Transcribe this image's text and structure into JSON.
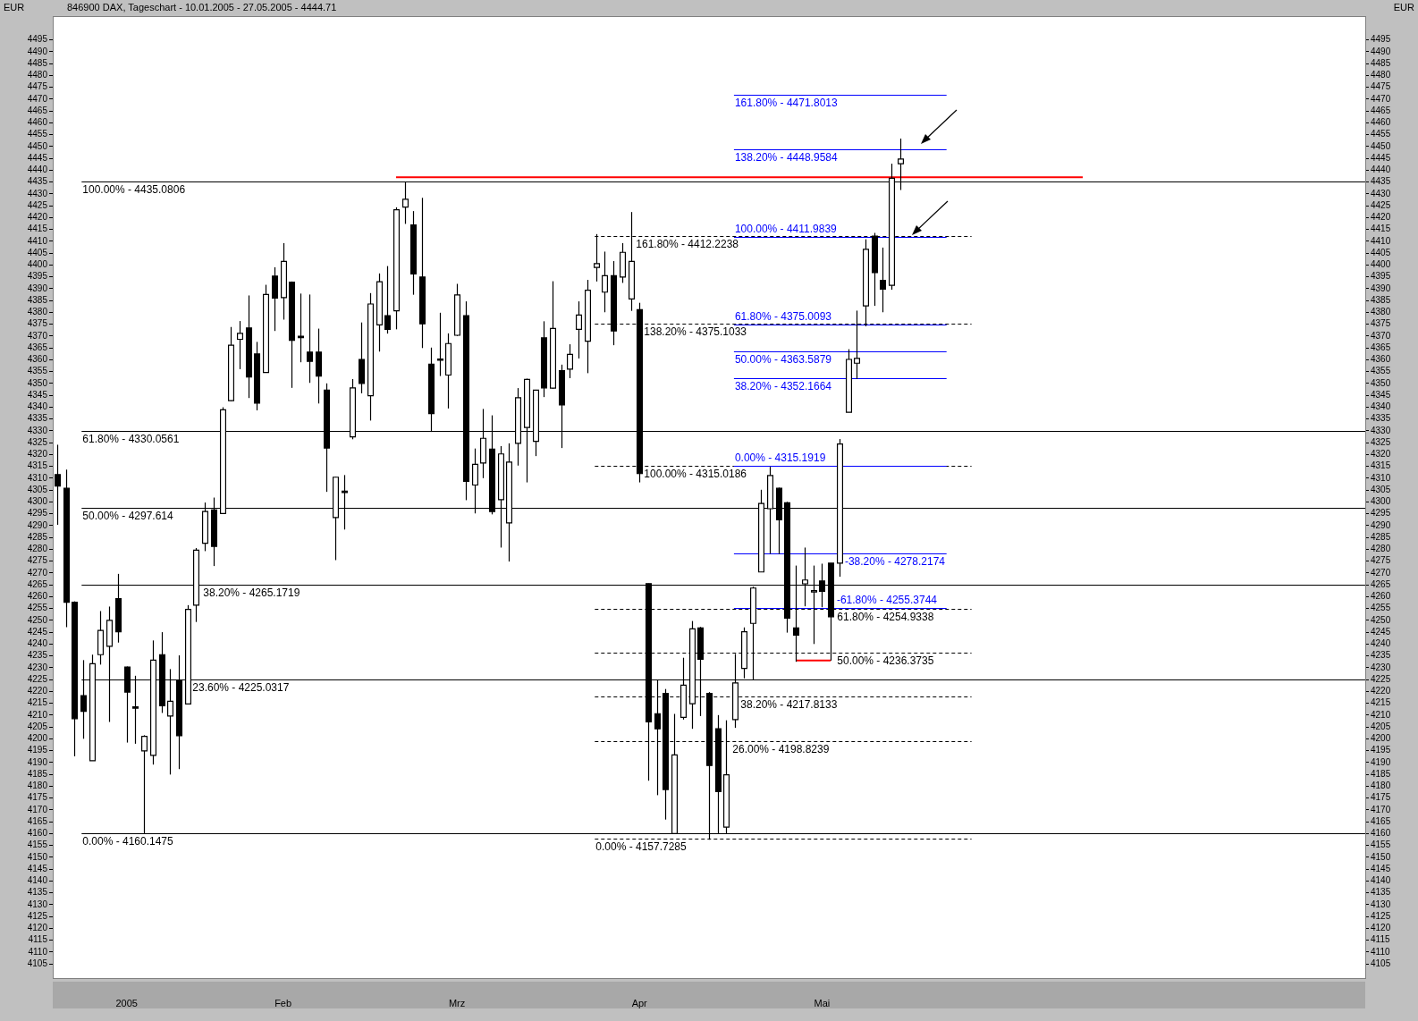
{
  "chart_data": {
    "type": "candlestick",
    "title": "846900 DAX, Tageschart - 10.01.2005 - 27.05.2005 - 4444.71",
    "ylabel": "EUR",
    "y2label": "EUR",
    "categories": [
      null,
      null,
      null,
      null,
      null,
      null,
      null,
      null,
      "2005",
      null,
      null,
      null,
      null,
      null,
      null,
      null,
      null,
      null,
      null,
      null,
      null,
      null,
      null,
      null,
      null,
      null,
      "Feb",
      null,
      null,
      null,
      null,
      null,
      null,
      null,
      null,
      null,
      null,
      null,
      null,
      null,
      null,
      null,
      null,
      null,
      null,
      null,
      "Mrz",
      null,
      null,
      null,
      null,
      null,
      null,
      null,
      null,
      null,
      null,
      null,
      null,
      null,
      null,
      null,
      null,
      null,
      null,
      null,
      null,
      "Apr",
      null,
      null,
      null,
      null,
      null,
      null,
      null,
      null,
      null,
      null,
      null,
      null,
      null,
      null,
      null,
      null,
      null,
      null,
      null,
      null,
      "Mai",
      null,
      null,
      null,
      null,
      null,
      null,
      null,
      null,
      null,
      null,
      null,
      null,
      null,
      null,
      null,
      null,
      null,
      null,
      null,
      null,
      null,
      null,
      null,
      null,
      null,
      null,
      null,
      null,
      null,
      null,
      null,
      null,
      null,
      null,
      null,
      null,
      null,
      null,
      null,
      null,
      null,
      null,
      null,
      null,
      null,
      null,
      null,
      null,
      null,
      null,
      null,
      null,
      null,
      null,
      null,
      null,
      null,
      null,
      null,
      null,
      null,
      null
    ],
    "ohlc": [
      [
        4311.5,
        4324.1,
        4290.3,
        4306.7
      ],
      [
        4305.7,
        4313.6,
        4247.1,
        4257.6
      ],
      [
        4257.6,
        4258,
        4192.6,
        4208.5
      ],
      [
        4218.2,
        4233.2,
        4200,
        4211.6
      ],
      [
        4190.7,
        4235.5,
        4190.7,
        4231.7
      ],
      [
        4235.5,
        4253.9,
        4231.3,
        4245.7
      ],
      [
        4239,
        4255.8,
        4207.1,
        4250
      ],
      [
        4259.1,
        4269.6,
        4240.6,
        4245.2
      ],
      [
        4230.3,
        4230.5,
        4198.4,
        4219.7
      ],
      [
        4213.5,
        4226.6,
        4197.9,
        4213
      ],
      [
        4194.9,
        4201.5,
        4160,
        4201
      ],
      [
        4193,
        4241.5,
        4189.1,
        4233.2
      ],
      [
        4235.5,
        4245,
        4210.9,
        4213.9
      ],
      [
        4209.6,
        4229.4,
        4184.9,
        4215.8
      ],
      [
        4224.5,
        4235.2,
        4187.2,
        4201.3
      ],
      [
        4214.7,
        4256.4,
        4214.5,
        4254.6
      ],
      [
        4256.4,
        4280.5,
        4249.3,
        4279.6
      ],
      [
        4282.5,
        4299.7,
        4279.2,
        4295.9
      ],
      [
        4296.6,
        4301.8,
        4272.9,
        4281.2
      ],
      [
        4295.1,
        4339.9,
        4295,
        4338.8
      ],
      [
        4342.7,
        4373.8,
        4342.5,
        4366.1
      ],
      [
        4368.6,
        4376.3,
        4356,
        4371.1
      ],
      [
        4373.4,
        4387.1,
        4343.8,
        4352.7
      ],
      [
        4362.4,
        4367.5,
        4338.6,
        4341.7
      ],
      [
        4354.6,
        4391.6,
        4354.5,
        4387.5
      ],
      [
        4395.3,
        4399,
        4372.1,
        4386
      ],
      [
        4386.2,
        4409.2,
        4376.9,
        4401.5
      ],
      [
        4392.7,
        4393,
        4348.1,
        4368.2
      ],
      [
        4369.9,
        4387.9,
        4358.9,
        4369.5
      ],
      [
        4363.2,
        4387.5,
        4350.2,
        4359.3
      ],
      [
        4363.2,
        4373.1,
        4341.5,
        4353.1
      ],
      [
        4347.1,
        4350,
        4304.2,
        4322.7
      ],
      [
        4293.4,
        4310.5,
        4275.4,
        4310.4
      ],
      [
        4304.5,
        4311.3,
        4288.3,
        4304
      ],
      [
        4327.4,
        4351.8,
        4326.4,
        4348.1
      ],
      [
        4360.1,
        4375.7,
        4345.8,
        4350
      ],
      [
        4344.8,
        4388.1,
        4334.3,
        4383.5
      ],
      [
        4374.7,
        4396.4,
        4363.4,
        4392.9
      ],
      [
        4378.6,
        4399.5,
        4371,
        4372.8
      ],
      [
        4380.6,
        4424.3,
        4372.8,
        4423.3
      ],
      [
        4424.4,
        4435.1,
        4417.3,
        4427.7
      ],
      [
        4416.9,
        4422.7,
        4387.4,
        4396.2
      ],
      [
        4394.9,
        4428.3,
        4364.9,
        4375.1
      ],
      [
        4358.1,
        4365.1,
        4329.5,
        4337.2
      ],
      [
        4360.3,
        4379.8,
        4353.1,
        4360
      ],
      [
        4353.5,
        4371.1,
        4339.4,
        4366.8
      ],
      [
        4370.3,
        4392,
        4370,
        4387.3
      ],
      [
        4378.6,
        4384.6,
        4300.7,
        4308.6
      ],
      [
        4307.1,
        4322.5,
        4295.1,
        4315.8
      ],
      [
        4316.4,
        4339.2,
        4310,
        4326.8
      ],
      [
        4322.2,
        4336.5,
        4294.7,
        4295.9
      ],
      [
        4300.9,
        4323.5,
        4280.7,
        4320.2
      ],
      [
        4291.1,
        4324.7,
        4274.8,
        4316.8
      ],
      [
        4324.7,
        4348,
        4315.3,
        4343.9
      ],
      [
        4331.4,
        4352,
        4308.2,
        4351.7
      ],
      [
        4325.5,
        4347.3,
        4319.3,
        4347.1
      ],
      [
        4369.2,
        4376.2,
        4344.2,
        4348.1
      ],
      [
        4348,
        4393.1,
        4347.7,
        4373.2
      ],
      [
        4355.4,
        4357.9,
        4322.7,
        4340.9
      ],
      [
        4356,
        4366.5,
        4352.2,
        4362.2
      ],
      [
        4372.8,
        4384.6,
        4360.5,
        4378.8
      ],
      [
        4367.8,
        4393.7,
        4354.3,
        4389.3
      ],
      [
        4398.9,
        4413,
        4393,
        4400.5
      ],
      [
        4388.5,
        4405.6,
        4380,
        4395.4
      ],
      [
        4395.4,
        4401.6,
        4366.1,
        4372.1
      ],
      [
        4394.9,
        4409.2,
        4392.4,
        4405.3
      ],
      [
        4385.6,
        4422.3,
        4380.6,
        4401.5
      ],
      [
        4381.1,
        4384,
        4308.2,
        4311.9
      ],
      [
        4265.5,
        4265.5,
        4182.3,
        4207.1
      ],
      [
        4210.6,
        4224.9,
        4176.2,
        4204.2
      ],
      [
        4219.1,
        4221,
        4165.9,
        4178.6
      ],
      [
        4160,
        4210.5,
        4160,
        4193.2
      ],
      [
        4209,
        4234.2,
        4208.1,
        4222.6
      ],
      [
        4214.8,
        4249.7,
        4204.2,
        4246.4
      ],
      [
        4246.8,
        4247.2,
        4209.6,
        4233.6
      ],
      [
        4219.1,
        4219.7,
        4157.4,
        4188.7
      ],
      [
        4204.2,
        4210,
        4160,
        4177.7
      ],
      [
        4162.7,
        4207.8,
        4160,
        4184.8
      ],
      [
        4208.1,
        4235.8,
        4204.6,
        4223.6
      ],
      [
        4229.7,
        4247,
        4225.5,
        4245.2
      ],
      [
        4248.7,
        4264.2,
        4225,
        4263.6
      ],
      [
        4270.4,
        4305.1,
        4270.4,
        4299.3
      ],
      [
        4297.1,
        4314.8,
        4278.1,
        4311.1
      ],
      [
        4305.7,
        4306,
        4278,
        4292.4
      ],
      [
        4299.6,
        4300,
        4244.8,
        4250.9
      ],
      [
        4246.8,
        4273.1,
        4232.5,
        4243.7
      ],
      [
        4265.4,
        4280.7,
        4255.9,
        4267
      ],
      [
        4262,
        4273.1,
        4240,
        4262.5
      ],
      [
        4266.6,
        4273.9,
        4255.5,
        4262.2
      ],
      [
        4274.1,
        4274.1,
        4233,
        4251.5
      ],
      [
        4274.1,
        4326.5,
        4268.4,
        4324.4
      ],
      [
        4337.8,
        4364.4,
        4337.8,
        4360.1
      ],
      [
        4358.5,
        4380.7,
        4351.8,
        4360.5
      ],
      [
        4382.7,
        4410.8,
        4374.1,
        4406.6
      ],
      [
        4412.1,
        4413.5,
        4382.7,
        4396.7
      ],
      [
        4393.5,
        4407.3,
        4380,
        4389.8
      ],
      [
        4391.4,
        4442.7,
        4389.5,
        4436.6
      ],
      [
        4442.7,
        4453.3,
        4431.6,
        4444.71
      ],
      null,
      null,
      null,
      null,
      null,
      null,
      null,
      null,
      null,
      null,
      null,
      null,
      null,
      null,
      null,
      null,
      null,
      null,
      null,
      null,
      null,
      null,
      null,
      null,
      null,
      null,
      null,
      null,
      null,
      null,
      null,
      null,
      null,
      null,
      null,
      null,
      null,
      null,
      null,
      null,
      null,
      null,
      null,
      null,
      null,
      null,
      null,
      null,
      null,
      null,
      null,
      null,
      null
    ],
    "series": [
      {
        "type": "line",
        "color": "#ff0000",
        "values": [
          null,
          null,
          null,
          null,
          null,
          null,
          null,
          null,
          null,
          null,
          null,
          null,
          null,
          null,
          null,
          null,
          null,
          null,
          null,
          null,
          null,
          null,
          null,
          null,
          null,
          null,
          null,
          null,
          null,
          null,
          null,
          null,
          null,
          null,
          null,
          null,
          null,
          null,
          null,
          4437,
          4437,
          4437,
          4437,
          4437,
          4437,
          4437,
          4437,
          4437,
          4437,
          4437,
          4437,
          4437,
          4437,
          4437,
          4437,
          4437,
          4437,
          4437,
          4437,
          4437,
          4437,
          4437,
          4437,
          4437,
          4437,
          4437,
          4437,
          4437,
          4437,
          4437,
          4437,
          4437,
          4437,
          4437,
          4437,
          4437,
          4437,
          4437,
          4437,
          4437,
          4437,
          4437,
          4437,
          4437,
          4437,
          4437,
          4437,
          4437,
          4437,
          4437,
          4437,
          4437,
          4437,
          4437,
          4437,
          4437,
          4437,
          4437,
          4437,
          4437,
          4437,
          4437,
          4437,
          4437,
          4437,
          4437,
          4437,
          4437,
          4437,
          4437,
          4437,
          4437,
          4437,
          4437,
          4437,
          4437,
          4437,
          4437,
          4437,
          null,
          null,
          null,
          null,
          null,
          null,
          null,
          null,
          null,
          null,
          null,
          null,
          null,
          null,
          null,
          null,
          null,
          null,
          null,
          null,
          null,
          null,
          null,
          null,
          null,
          null,
          null,
          null,
          null,
          null,
          null,
          null
        ]
      },
      {
        "type": "line",
        "color": "#ff0000",
        "values": [
          null,
          null,
          null,
          null,
          null,
          null,
          null,
          null,
          null,
          null,
          null,
          null,
          null,
          null,
          null,
          null,
          null,
          null,
          null,
          null,
          null,
          null,
          null,
          null,
          null,
          null,
          null,
          null,
          null,
          null,
          null,
          null,
          null,
          null,
          null,
          null,
          null,
          null,
          null,
          null,
          null,
          null,
          null,
          null,
          null,
          null,
          null,
          null,
          null,
          null,
          null,
          null,
          null,
          null,
          null,
          null,
          null,
          null,
          null,
          null,
          null,
          null,
          null,
          null,
          null,
          null,
          null,
          null,
          null,
          null,
          null,
          null,
          null,
          null,
          null,
          null,
          null,
          null,
          null,
          null,
          null,
          null,
          null,
          null,
          null,
          4233,
          4233,
          4233,
          4233,
          4233,
          null,
          null,
          null,
          null,
          null,
          null,
          null,
          null,
          null,
          null,
          null,
          null,
          null,
          null,
          null,
          null,
          null,
          null,
          null,
          null,
          null,
          null,
          null,
          null,
          null,
          null,
          null,
          null,
          null,
          null,
          null,
          null,
          null,
          null,
          null,
          null,
          null,
          null,
          null,
          null,
          null,
          null,
          null,
          null,
          null,
          null,
          null,
          null,
          null,
          null,
          null,
          null,
          null,
          null,
          null,
          null,
          null,
          null,
          null,
          null,
          null
        ]
      }
    ],
    "ref_lines": [
      {
        "axis": "y",
        "value": 4435.0806,
        "color": "#000000",
        "line_style": "solid"
      },
      {
        "axis": "y",
        "value": 4330.0561,
        "color": "#000000",
        "line_style": "solid"
      },
      {
        "axis": "y",
        "value": 4297.614,
        "color": "#000000",
        "line_style": "solid"
      },
      {
        "axis": "y",
        "value": 4265.1719,
        "color": "#000000",
        "line_style": "solid"
      },
      {
        "axis": "y",
        "value": 4225.0317,
        "color": "#000000",
        "line_style": "solid"
      },
      {
        "axis": "y",
        "value": 4160.1475,
        "color": "#000000",
        "line_style": "solid"
      },
      {
        "axis": "y",
        "value": 4412.2238,
        "color": "#000000",
        "line_style": "dashed"
      },
      {
        "axis": "y",
        "value": 4375.1033,
        "color": "#000000",
        "line_style": "dashed"
      },
      {
        "axis": "y",
        "value": 4315.0186,
        "color": "#000000",
        "line_style": "dashed"
      },
      {
        "axis": "y",
        "value": 4254.9338,
        "color": "#000000",
        "line_style": "dashed"
      },
      {
        "axis": "y",
        "value": 4236.3735,
        "color": "#000000",
        "line_style": "dashed"
      },
      {
        "axis": "y",
        "value": 4217.8133,
        "color": "#000000",
        "line_style": "dashed"
      },
      {
        "axis": "y",
        "value": 4198.8239,
        "color": "#000000",
        "line_style": "dashed"
      },
      {
        "axis": "y",
        "value": 4157.7285,
        "color": "#000000",
        "line_style": "dashed"
      },
      {
        "axis": "y",
        "value": 4471.8013,
        "color": "#0000ff",
        "line_style": "solid"
      },
      {
        "axis": "y",
        "value": 4448.9584,
        "color": "#0000ff",
        "line_style": "solid"
      },
      {
        "axis": "y",
        "value": 4411.9839,
        "color": "#0000ff",
        "line_style": "solid"
      },
      {
        "axis": "y",
        "value": 4375.0093,
        "color": "#0000ff",
        "line_style": "solid"
      },
      {
        "axis": "y",
        "value": 4363.5879,
        "color": "#0000ff",
        "line_style": "solid"
      },
      {
        "axis": "y",
        "value": 4352.1664,
        "color": "#0000ff",
        "line_style": "solid"
      },
      {
        "axis": "y",
        "value": 4315.1919,
        "color": "#0000ff",
        "line_style": "solid"
      },
      {
        "axis": "y",
        "value": 4278.2174,
        "color": "#0000ff",
        "line_style": "solid"
      },
      {
        "axis": "y",
        "value": 4255.3744,
        "color": "#0000ff",
        "line_style": "solid"
      }
    ],
    "annotations": [
      {
        "text": "100.00% - 4435.0806",
        "y": 4435.0806
      },
      {
        "text": "61.80% - 4330.0561",
        "y": 4330.0561
      },
      {
        "text": "50.00% - 4297.614",
        "y": 4297.614
      },
      {
        "text": "38.20% - 4265.1719",
        "y": 4265.1719
      },
      {
        "text": "23.60% - 4225.0317",
        "y": 4225.0317
      },
      {
        "text": "0.00% - 4160.1475",
        "y": 4160.1475
      },
      {
        "text": "161.80% - 4412.2238",
        "y": 4412.2238
      },
      {
        "text": "138.20% - 4375.1033",
        "y": 4375.1033
      },
      {
        "text": "100.00% - 4315.0186",
        "y": 4315.0186
      },
      {
        "text": "61.80% - 4254.9338",
        "y": 4254.9338
      },
      {
        "text": "50.00% - 4236.3735",
        "y": 4236.3735
      },
      {
        "text": "38.20% - 4217.8133",
        "y": 4217.8133
      },
      {
        "text": "26.00% - 4198.8239",
        "y": 4198.8239
      },
      {
        "text": "0.00% - 4157.7285",
        "y": 4157.7285
      },
      {
        "text": "161.80% - 4471.8013",
        "y": 4471.8013
      },
      {
        "text": "138.20% - 4448.9584",
        "y": 4448.9584
      },
      {
        "text": "100.00% - 4411.9839",
        "y": 4411.9839
      },
      {
        "text": "61.80% - 4375.0093",
        "y": 4375.0093
      },
      {
        "text": "50.00% - 4363.5879",
        "y": 4363.5879
      },
      {
        "text": "38.20% - 4352.1664",
        "y": 4352.1664
      },
      {
        "text": "0.00% - 4315.1919",
        "y": 4315.1919
      },
      {
        "text": "-38.20% - 4278.2174",
        "y": 4278.2174
      },
      {
        "text": "-61.80% - 4255.3744",
        "y": 4255.3744
      }
    ],
    "ylim": [
      4099,
      4505
    ],
    "yticks": [
      4105,
      4110,
      4115,
      4120,
      4125,
      4130,
      4135,
      4140,
      4145,
      4150,
      4155,
      4160,
      4165,
      4170,
      4175,
      4180,
      4185,
      4190,
      4195,
      4200,
      4205,
      4210,
      4215,
      4220,
      4225,
      4230,
      4235,
      4240,
      4245,
      4250,
      4255,
      4260,
      4265,
      4270,
      4275,
      4280,
      4285,
      4290,
      4295,
      4300,
      4305,
      4310,
      4315,
      4320,
      4325,
      4330,
      4335,
      4340,
      4345,
      4350,
      4355,
      4360,
      4365,
      4370,
      4375,
      4380,
      4385,
      4390,
      4395,
      4400,
      4405,
      4410,
      4415,
      4420,
      4425,
      4430,
      4435,
      4440,
      4445,
      4450,
      4455,
      4460,
      4465,
      4470,
      4475,
      4480,
      4485,
      4490,
      4495
    ],
    "y2lim": [
      4099,
      4505
    ],
    "y2ticks": [
      4105,
      4110,
      4115,
      4120,
      4125,
      4130,
      4135,
      4140,
      4145,
      4150,
      4155,
      4160,
      4165,
      4170,
      4175,
      4180,
      4185,
      4190,
      4195,
      4200,
      4205,
      4210,
      4215,
      4220,
      4225,
      4230,
      4235,
      4240,
      4245,
      4250,
      4255,
      4260,
      4265,
      4270,
      4275,
      4280,
      4285,
      4290,
      4295,
      4300,
      4305,
      4310,
      4315,
      4320,
      4325,
      4330,
      4335,
      4340,
      4345,
      4350,
      4355,
      4360,
      4365,
      4370,
      4375,
      4380,
      4385,
      4390,
      4395,
      4400,
      4405,
      4410,
      4415,
      4420,
      4425,
      4430,
      4435,
      4440,
      4445,
      4450,
      4455,
      4460,
      4465,
      4470,
      4475,
      4480,
      4485,
      4490,
      4495
    ],
    "grid": false,
    "legend": false
  }
}
